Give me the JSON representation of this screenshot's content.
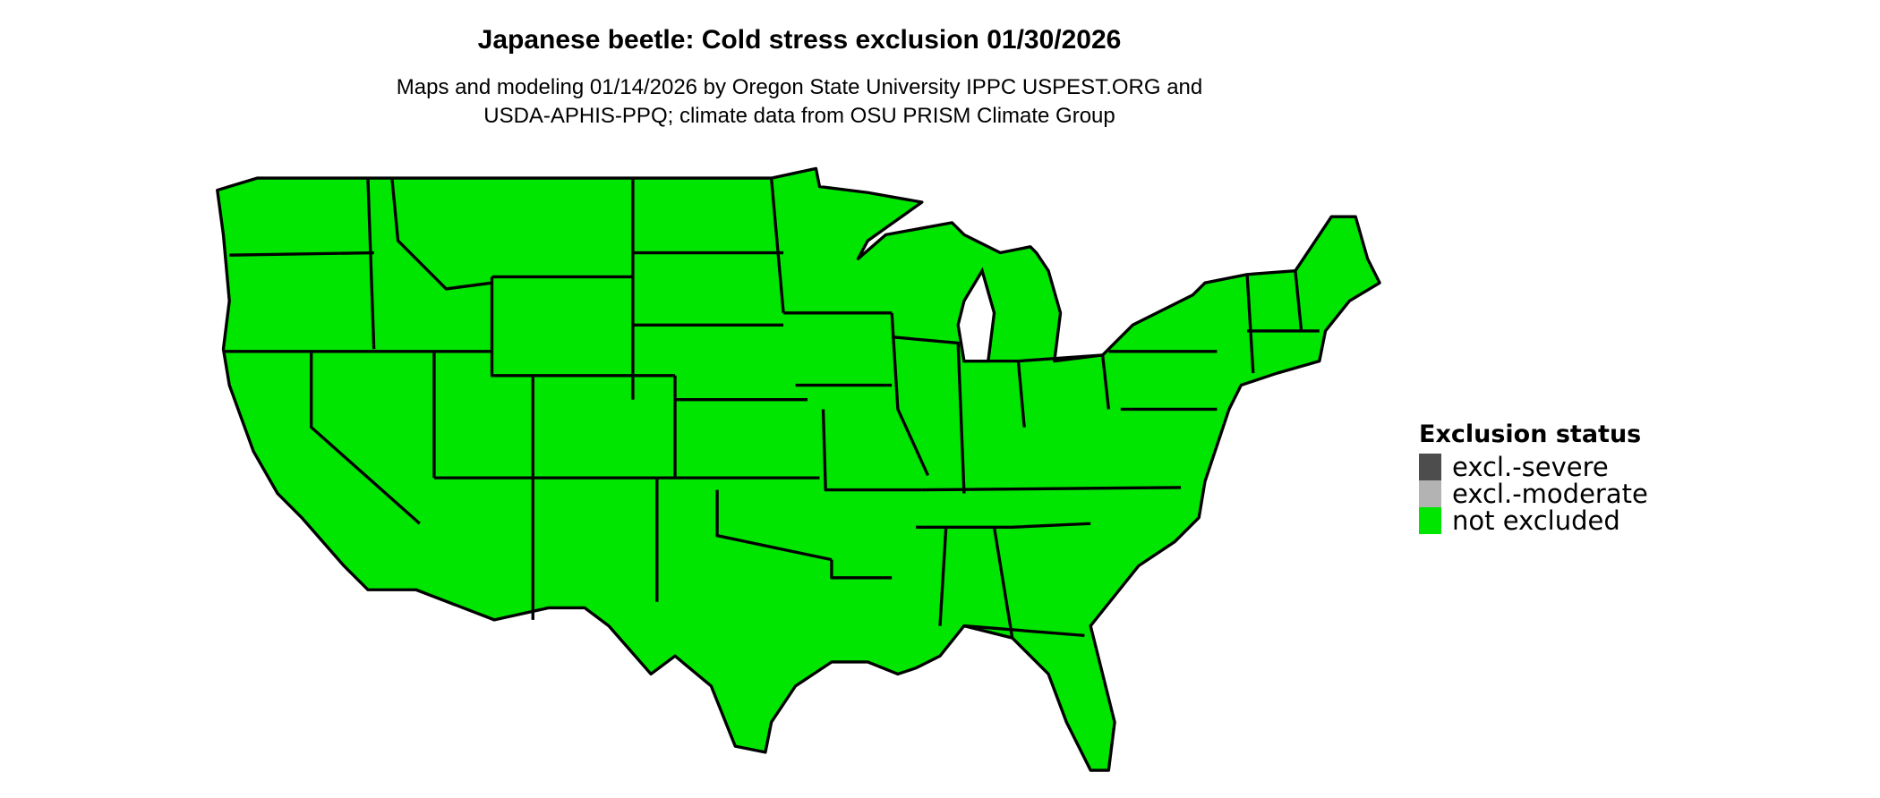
{
  "title": "Japanese beetle: Cold stress exclusion 01/30/2026",
  "subtitle_lines": [
    "Maps and modeling 01/14/2026 by Oregon State University IPPC USPEST.ORG and",
    "USDA-APHIS-PPQ; climate data from OSU PRISM Climate Group"
  ],
  "map": {
    "region": "Contiguous United States",
    "fill_status": "not excluded",
    "fill_color": "#00E600",
    "border_color": "#000000"
  },
  "legend": {
    "title": "Exclusion status",
    "items": [
      {
        "label": "excl.-severe",
        "color": "#4D4D4D"
      },
      {
        "label": "excl.-moderate",
        "color": "#B3B3B3"
      },
      {
        "label": "not excluded",
        "color": "#00E600"
      }
    ]
  }
}
